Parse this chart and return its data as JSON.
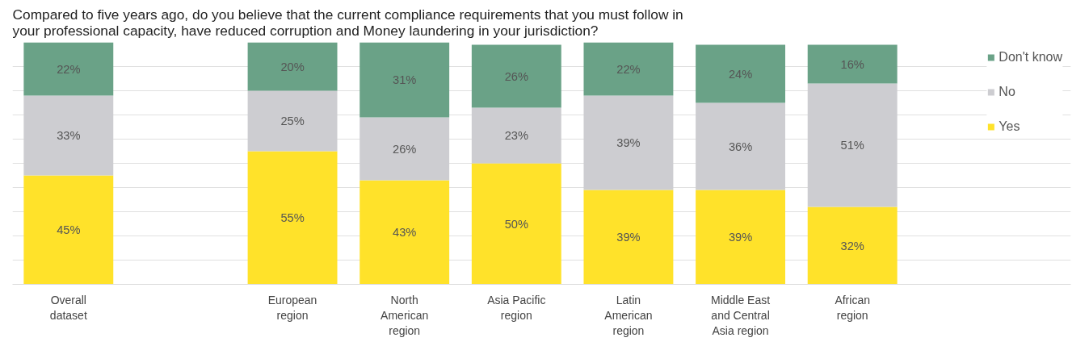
{
  "chart_data": {
    "type": "bar",
    "stacked": true,
    "title": "Compared to five years ago, do you believe that the current compliance requirements that you must follow in your professional capacity, have reduced corruption and Money laundering in your jurisdiction?",
    "categories": [
      "Overall dataset",
      null,
      "European region",
      "North American region",
      "Asia Pacific region",
      "Latin American region",
      "Middle East and Central Asia region",
      "African region"
    ],
    "series": [
      {
        "name": "Yes",
        "color": "#ffe22a",
        "values": [
          45,
          null,
          55,
          43,
          50,
          39,
          39,
          32
        ],
        "value_labels": [
          "45%",
          null,
          "55%",
          "43%",
          "50%",
          "39%",
          "39%",
          "32%"
        ]
      },
      {
        "name": "No",
        "color": "#cdcdd1",
        "values": [
          33,
          null,
          25,
          26,
          23,
          39,
          36,
          51
        ],
        "value_labels": [
          "33%",
          null,
          "25%",
          "26%",
          "23%",
          "39%",
          "36%",
          "51%"
        ]
      },
      {
        "name": "Don't know",
        "color": "#6aa287",
        "values": [
          22,
          null,
          20,
          31,
          26,
          22,
          24,
          16
        ],
        "value_labels": [
          "22%",
          null,
          "20%",
          "31%",
          "26%",
          "22%",
          "24%",
          "16%"
        ]
      }
    ],
    "ylim": [
      0,
      100
    ],
    "yticks": [
      {
        "value": 0,
        "label": null
      },
      {
        "value": 10,
        "label": null
      },
      {
        "value": 20,
        "label": null
      },
      {
        "value": 30,
        "label": null
      },
      {
        "value": 40,
        "label": null
      },
      {
        "value": 50,
        "label": null
      },
      {
        "value": 60,
        "label": null
      },
      {
        "value": 70,
        "label": null
      },
      {
        "value": 80,
        "label": null
      },
      {
        "value": 90,
        "label": null
      }
    ],
    "grid": "y",
    "legend": "right",
    "tick_labels": "x"
  }
}
